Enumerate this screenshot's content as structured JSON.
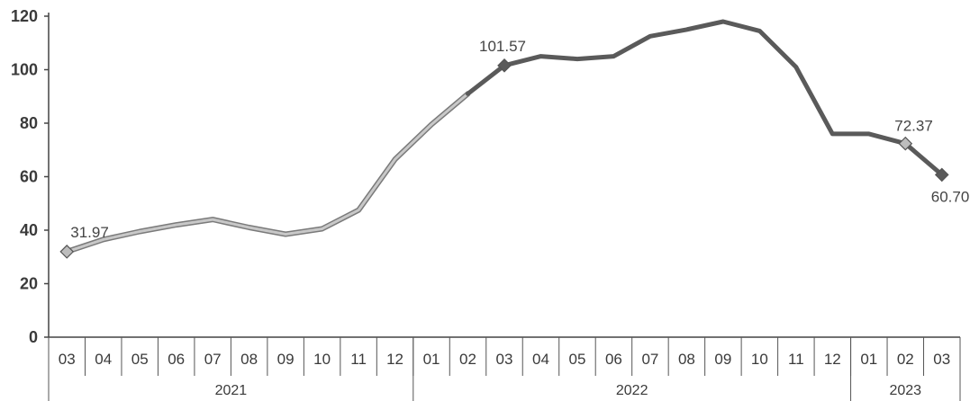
{
  "chart_data": {
    "type": "line",
    "title": "",
    "xlabel": "",
    "ylabel": "",
    "ylim": [
      0,
      120
    ],
    "y_ticks": [
      0,
      20,
      40,
      60,
      80,
      100,
      120
    ],
    "grid": false,
    "categories": [
      "03",
      "04",
      "05",
      "06",
      "07",
      "08",
      "09",
      "10",
      "11",
      "12",
      "01",
      "02",
      "03",
      "04",
      "05",
      "06",
      "07",
      "08",
      "09",
      "10",
      "11",
      "12",
      "01",
      "02",
      "03"
    ],
    "year_groups": [
      {
        "label": "2021",
        "count": 10
      },
      {
        "label": "2022",
        "count": 12
      },
      {
        "label": "2023",
        "count": 3
      }
    ],
    "series": [
      {
        "values": [
          31.97,
          36.5,
          39.5,
          42,
          44,
          41,
          38.5,
          40.5,
          47.5,
          66.5,
          79.5,
          91,
          101.57,
          105,
          104,
          105,
          112.5,
          115,
          118,
          114.5,
          101,
          76,
          76,
          72.37,
          60.7
        ],
        "color": "#5a5a5a",
        "segment_colors": {
          "light": "#c8c8c8",
          "dark": "#5a5a5a"
        },
        "light_until_index": 11
      }
    ],
    "data_labels": [
      {
        "index": 0,
        "text": "31.97"
      },
      {
        "index": 12,
        "text": "101.57"
      },
      {
        "index": 23,
        "text": "72.37"
      },
      {
        "index": 24,
        "text": "60.70"
      }
    ]
  }
}
